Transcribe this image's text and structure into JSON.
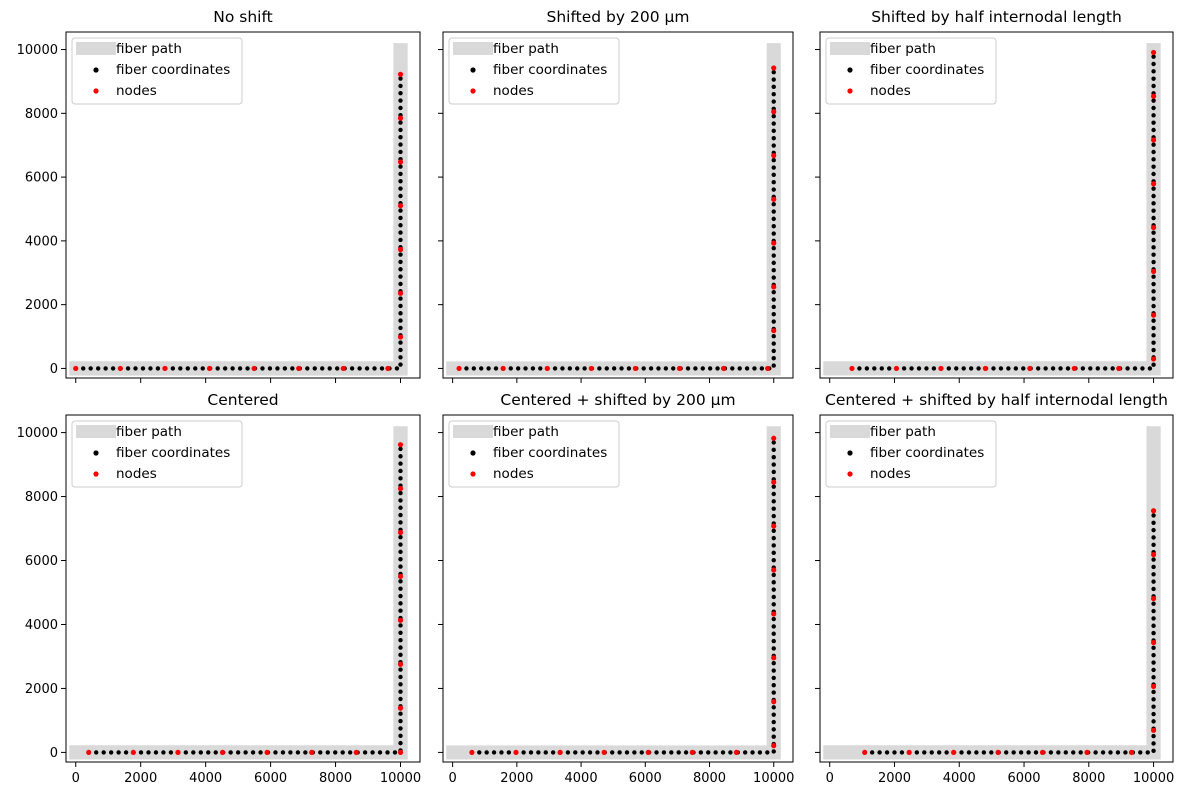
{
  "figure": {
    "legend_labels": {
      "path": "fiber path",
      "coords": "fiber coordinates",
      "nodes": "nodes"
    },
    "colors": {
      "path": "#d9d9d9",
      "coords": "#000000",
      "nodes": "#ff0000",
      "frame": "#000000"
    }
  },
  "chart_data": [
    {
      "type": "scatter",
      "title": "No shift",
      "xlabel": "",
      "ylabel": "",
      "xlim": [
        -300,
        10600
      ],
      "ylim": [
        -300,
        10550
      ],
      "xticks": [
        0,
        2000,
        4000,
        6000,
        8000,
        10000
      ],
      "yticks": [
        0,
        2000,
        4000,
        6000,
        8000,
        10000
      ],
      "grid": false,
      "legend_position": "upper-left",
      "fiber_path": [
        [
          -200,
          0
        ],
        [
          10000,
          0
        ],
        [
          10000,
          10200
        ]
      ],
      "fiber_coordinates": {
        "spacing": 230,
        "x_start": 0,
        "y_end": 9200
      },
      "nodes": [
        [
          0,
          0
        ],
        [
          1373,
          0
        ],
        [
          2746,
          0
        ],
        [
          4119,
          0
        ],
        [
          5492,
          0
        ],
        [
          6865,
          0
        ],
        [
          8238,
          0
        ],
        [
          9611,
          0
        ],
        [
          10000,
          984
        ],
        [
          10000,
          2357
        ],
        [
          10000,
          3730
        ],
        [
          10000,
          5103
        ],
        [
          10000,
          6476
        ],
        [
          10000,
          7849
        ],
        [
          10000,
          9222
        ]
      ]
    },
    {
      "type": "scatter",
      "title": "Shifted by 200 µm",
      "xlabel": "",
      "ylabel": "",
      "xlim": [
        -300,
        10600
      ],
      "ylim": [
        -300,
        10550
      ],
      "xticks": [
        0,
        2000,
        4000,
        6000,
        8000,
        10000
      ],
      "yticks": [
        0,
        2000,
        4000,
        6000,
        8000,
        10000
      ],
      "grid": false,
      "legend_position": "upper-left",
      "fiber_path": [
        [
          -200,
          0
        ],
        [
          10000,
          0
        ],
        [
          10000,
          10200
        ]
      ],
      "fiber_coordinates": {
        "spacing": 230,
        "x_start": 200,
        "y_end": 9400
      },
      "nodes": [
        [
          200,
          0
        ],
        [
          1573,
          0
        ],
        [
          2946,
          0
        ],
        [
          4319,
          0
        ],
        [
          5692,
          0
        ],
        [
          7065,
          0
        ],
        [
          8438,
          0
        ],
        [
          9811,
          0
        ],
        [
          10000,
          1184
        ],
        [
          10000,
          2557
        ],
        [
          10000,
          3930
        ],
        [
          10000,
          5303
        ],
        [
          10000,
          6676
        ],
        [
          10000,
          8049
        ],
        [
          10000,
          9422
        ]
      ]
    },
    {
      "type": "scatter",
      "title": "Shifted by half internodal length",
      "xlabel": "",
      "ylabel": "",
      "xlim": [
        -300,
        10600
      ],
      "ylim": [
        -300,
        10550
      ],
      "xticks": [
        0,
        2000,
        4000,
        6000,
        8000,
        10000
      ],
      "yticks": [
        0,
        2000,
        4000,
        6000,
        8000,
        10000
      ],
      "grid": false,
      "legend_position": "upper-left",
      "fiber_path": [
        [
          -200,
          0
        ],
        [
          10000,
          0
        ],
        [
          10000,
          10200
        ]
      ],
      "fiber_coordinates": {
        "spacing": 230,
        "x_start": 687,
        "y_end": 9900
      },
      "nodes": [
        [
          687,
          0
        ],
        [
          2060,
          0
        ],
        [
          3433,
          0
        ],
        [
          4806,
          0
        ],
        [
          6179,
          0
        ],
        [
          7552,
          0
        ],
        [
          8925,
          0
        ],
        [
          10000,
          298
        ],
        [
          10000,
          1671
        ],
        [
          10000,
          3044
        ],
        [
          10000,
          4417
        ],
        [
          10000,
          5790
        ],
        [
          10000,
          7163
        ],
        [
          10000,
          8536
        ],
        [
          10000,
          9909
        ]
      ]
    },
    {
      "type": "scatter",
      "title": "Centered",
      "xlabel": "",
      "ylabel": "",
      "xlim": [
        -300,
        10600
      ],
      "ylim": [
        -300,
        10550
      ],
      "xticks": [
        0,
        2000,
        4000,
        6000,
        8000,
        10000
      ],
      "yticks": [
        0,
        2000,
        4000,
        6000,
        8000,
        10000
      ],
      "grid": false,
      "legend_position": "upper-left",
      "fiber_path": [
        [
          -200,
          0
        ],
        [
          10000,
          0
        ],
        [
          10000,
          10200
        ]
      ],
      "fiber_coordinates": {
        "spacing": 230,
        "x_start": 400,
        "y_end": 9600
      },
      "nodes": [
        [
          400,
          0
        ],
        [
          1773,
          0
        ],
        [
          3146,
          0
        ],
        [
          4519,
          0
        ],
        [
          5892,
          0
        ],
        [
          7265,
          0
        ],
        [
          8638,
          0
        ],
        [
          10000,
          0
        ],
        [
          10000,
          1384
        ],
        [
          10000,
          2757
        ],
        [
          10000,
          4130
        ],
        [
          10000,
          5503
        ],
        [
          10000,
          6876
        ],
        [
          10000,
          8249
        ],
        [
          10000,
          9622
        ]
      ]
    },
    {
      "type": "scatter",
      "title": "Centered + shifted by 200 µm",
      "xlabel": "",
      "ylabel": "",
      "xlim": [
        -300,
        10600
      ],
      "ylim": [
        -300,
        10550
      ],
      "xticks": [
        0,
        2000,
        4000,
        6000,
        8000,
        10000
      ],
      "yticks": [
        0,
        2000,
        4000,
        6000,
        8000,
        10000
      ],
      "grid": false,
      "legend_position": "upper-left",
      "fiber_path": [
        [
          -200,
          0
        ],
        [
          10000,
          0
        ],
        [
          10000,
          10200
        ]
      ],
      "fiber_coordinates": {
        "spacing": 230,
        "x_start": 600,
        "y_end": 9800
      },
      "nodes": [
        [
          600,
          0
        ],
        [
          1973,
          0
        ],
        [
          3346,
          0
        ],
        [
          4719,
          0
        ],
        [
          6092,
          0
        ],
        [
          7465,
          0
        ],
        [
          8838,
          0
        ],
        [
          10000,
          211
        ],
        [
          10000,
          1584
        ],
        [
          10000,
          2957
        ],
        [
          10000,
          4330
        ],
        [
          10000,
          5703
        ],
        [
          10000,
          7076
        ],
        [
          10000,
          8449
        ],
        [
          10000,
          9822
        ]
      ]
    },
    {
      "type": "scatter",
      "title": "Centered + shifted by half internodal length",
      "xlabel": "",
      "ylabel": "",
      "xlim": [
        -300,
        10600
      ],
      "ylim": [
        -300,
        10550
      ],
      "xticks": [
        0,
        2000,
        4000,
        6000,
        8000,
        10000
      ],
      "yticks": [
        0,
        2000,
        4000,
        6000,
        8000,
        10000
      ],
      "grid": false,
      "legend_position": "upper-left",
      "fiber_path": [
        [
          -200,
          0
        ],
        [
          10000,
          0
        ],
        [
          10000,
          10200
        ]
      ],
      "fiber_coordinates": {
        "spacing": 230,
        "x_start": 1080,
        "y_end": 7600
      },
      "nodes": [
        [
          1080,
          0
        ],
        [
          2453,
          0
        ],
        [
          3826,
          0
        ],
        [
          5199,
          0
        ],
        [
          6572,
          0
        ],
        [
          7945,
          0
        ],
        [
          9318,
          0
        ],
        [
          10000,
          691
        ],
        [
          10000,
          2064
        ],
        [
          10000,
          3437
        ],
        [
          10000,
          4810
        ],
        [
          10000,
          6183
        ],
        [
          10000,
          7556
        ]
      ]
    }
  ]
}
